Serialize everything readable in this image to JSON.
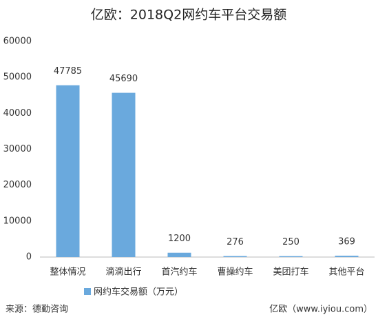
{
  "chart_data": {
    "type": "bar",
    "title": "亿欧：2018Q2网约车平台交易额",
    "categories": [
      "整体情况",
      "滴滴出行",
      "首汽约车",
      "曹操约车",
      "美团打车",
      "其他平台"
    ],
    "series": [
      {
        "name": "网约车交易额（万元）",
        "color": "#6aa9dd",
        "values": [
          47785,
          45690,
          1200,
          276,
          250,
          369
        ]
      }
    ],
    "ylim": [
      0,
      60000
    ],
    "yticks": [
      0,
      10000,
      20000,
      30000,
      40000,
      50000,
      60000
    ],
    "grid": false,
    "source": "来源：德勤咨询",
    "credit": "亿欧（www.iyiou.com）"
  }
}
